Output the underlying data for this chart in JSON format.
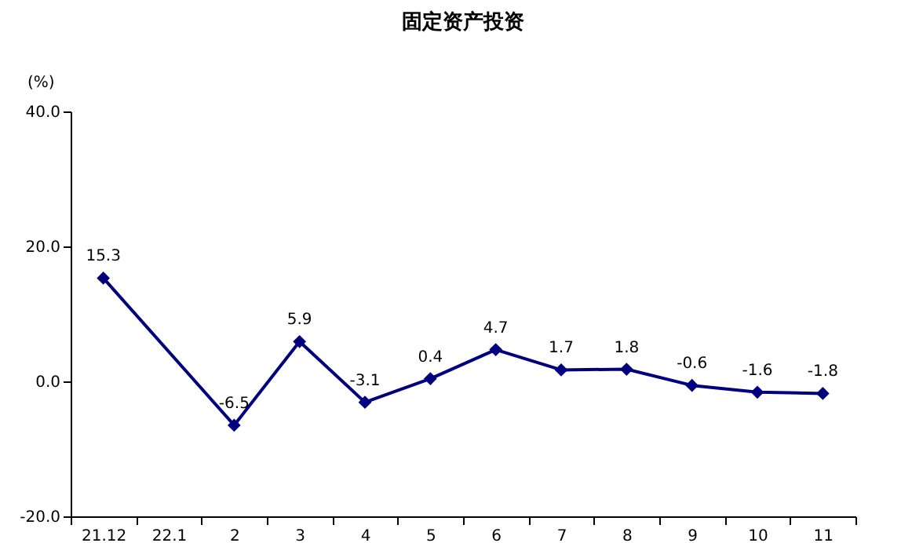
{
  "chart_data": {
    "type": "line",
    "title": "固定资产投资",
    "ylabel": "(%)",
    "categories": [
      "21.12",
      "22.1",
      "2",
      "3",
      "4",
      "5",
      "6",
      "7",
      "8",
      "9",
      "10",
      "11"
    ],
    "series": [
      {
        "color": "#00007f",
        "values": [
          15.3,
          null,
          -6.5,
          5.9,
          -3.1,
          0.4,
          4.7,
          1.7,
          1.8,
          -0.6,
          -1.6,
          -1.8
        ],
        "value_labels": [
          "15.3",
          null,
          "-6.5",
          "5.9",
          "-3.1",
          "0.4",
          "4.7",
          "1.7",
          "1.8",
          "-0.6",
          "-1.6",
          "-1.8"
        ]
      }
    ],
    "ylim": [
      -20,
      40
    ],
    "yticks": [
      {
        "value": -20,
        "label": "-20.0"
      },
      {
        "value": 0,
        "label": "0.0"
      },
      {
        "value": 20,
        "label": "20.0"
      },
      {
        "value": 40,
        "label": "40.0"
      }
    ],
    "grid": false,
    "legend": false,
    "marker": "diamond",
    "line_style": "solid"
  }
}
